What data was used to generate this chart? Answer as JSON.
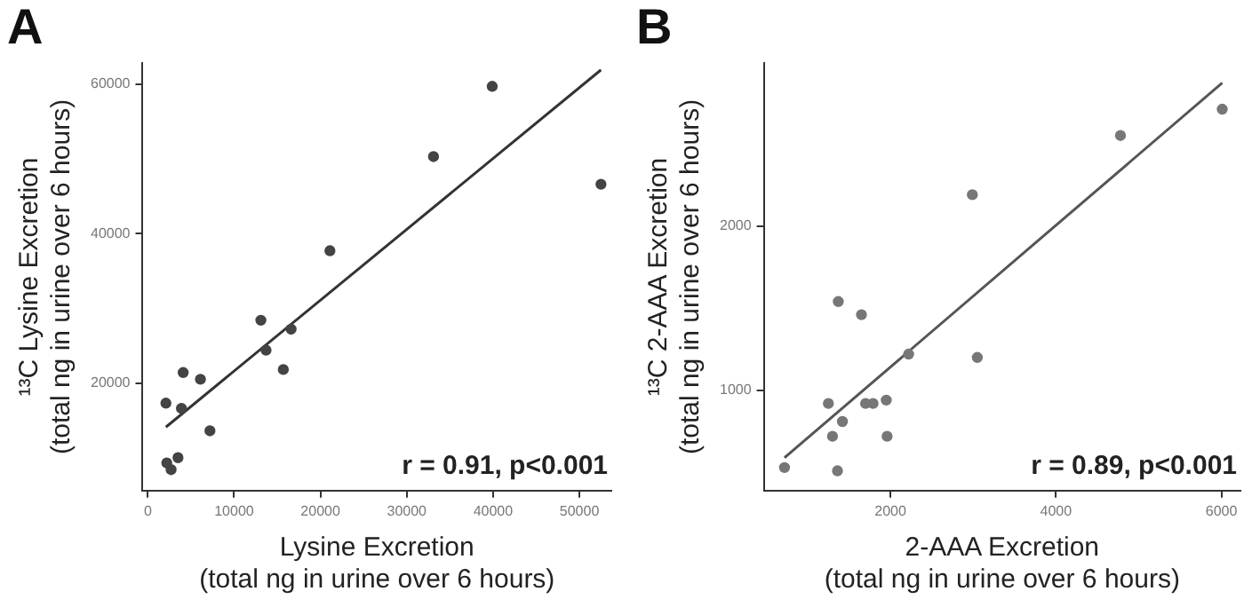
{
  "chart_data": [
    {
      "type": "scatter",
      "title": "A",
      "xlabel": "Lysine Excretion\n(total ng in urine over 6 hours)",
      "ylabel": "¹³C Lysine Excretion\n(total ng in urine over 6 hours)",
      "annotations": [
        "r = 0.91, p<0.001"
      ],
      "xlim": [
        -600,
        53700
      ],
      "ylim": [
        5600,
        62800
      ],
      "xticks": [
        0,
        10000,
        20000,
        30000,
        40000,
        50000
      ],
      "yticks": [
        20000,
        40000,
        60000
      ],
      "grid": false,
      "legend": false,
      "series": [
        {
          "type": "scatter",
          "marker": "circle",
          "color": "#444444",
          "x": [
            2100,
            4100,
            3900,
            6100,
            7200,
            2200,
            2700,
            3500,
            13100,
            13700,
            16600,
            15700,
            21100,
            33100,
            39900,
            52500
          ],
          "values": [
            17300,
            21400,
            16600,
            20500,
            13600,
            9300,
            8400,
            10000,
            28400,
            24400,
            27200,
            21800,
            37700,
            50300,
            59700,
            46600
          ]
        },
        {
          "type": "line",
          "marker": "none",
          "color": "#333333",
          "x": [
            2100,
            52500
          ],
          "values": [
            14100,
            61900
          ]
        }
      ]
    },
    {
      "type": "scatter",
      "title": "B",
      "xlabel": "2-AAA Excretion\n(total ng in urine over 6 hours)",
      "ylabel": "¹³C 2-AAA Excretion\n(total ng in urine over 6 hours)",
      "annotations": [
        "r = 0.89, p<0.001"
      ],
      "xlim": [
        470,
        6230
      ],
      "ylim": [
        390,
        2990
      ],
      "xticks": [
        2000,
        4000,
        6000
      ],
      "yticks": [
        1000,
        2000
      ],
      "grid": false,
      "legend": false,
      "series": [
        {
          "type": "scatter",
          "marker": "circle",
          "color": "#777777",
          "x": [
            720,
            1360,
            1300,
            1250,
            1420,
            1370,
            1650,
            1700,
            1790,
            1950,
            1960,
            2220,
            3050,
            2990,
            4780,
            6010
          ],
          "values": [
            530,
            510,
            720,
            920,
            810,
            1540,
            1460,
            920,
            920,
            940,
            720,
            1220,
            1200,
            2190,
            2550,
            2710
          ]
        },
        {
          "type": "line",
          "marker": "none",
          "color": "#555555",
          "x": [
            720,
            6010
          ],
          "values": [
            590,
            2870
          ]
        }
      ]
    }
  ]
}
